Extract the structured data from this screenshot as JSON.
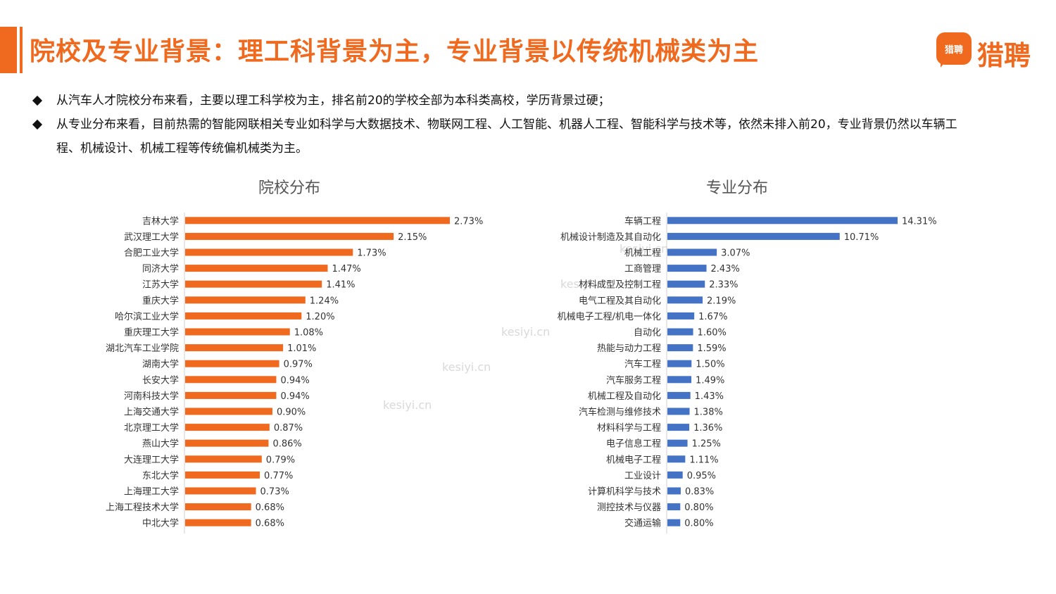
{
  "header": {
    "title": "院校及专业背景：理工科背景为主，专业背景以传统机械类为主",
    "logo_badge": "猎聘",
    "logo_text": "猎聘"
  },
  "bullets": [
    "从汽车人才院校分布来看，主要以理工科学校为主，排名前20的学校全部为本科类高校，学历背景过硬；",
    "从专业分布来看，目前热需的智能网联相关专业如科学与大数据技术、物联网工程、人工智能、机器人工程、智能科学与技术等，依然未排入前20，专业背景仍然以车辆工程、机械设计、机械工程等传统偏机械类为主。"
  ],
  "watermark": "kesiyi.cn",
  "colors": {
    "accent": "#ef6a1f",
    "blue": "#4472c4"
  },
  "chart_data": [
    {
      "type": "bar",
      "orientation": "horizontal",
      "title": "院校分布",
      "color": "#ef6a1f",
      "categories": [
        "吉林大学",
        "武汉理工大学",
        "合肥工业大学",
        "同济大学",
        "江苏大学",
        "重庆大学",
        "哈尔滨工业大学",
        "重庆理工大学",
        "湖北汽车工业学院",
        "湖南大学",
        "长安大学",
        "河南科技大学",
        "上海交通大学",
        "北京理工大学",
        "燕山大学",
        "大连理工大学",
        "东北大学",
        "上海理工大学",
        "上海工程技术大学",
        "中北大学"
      ],
      "values": [
        2.73,
        2.15,
        1.73,
        1.47,
        1.41,
        1.24,
        1.2,
        1.08,
        1.01,
        0.97,
        0.94,
        0.94,
        0.9,
        0.87,
        0.86,
        0.79,
        0.77,
        0.73,
        0.68,
        0.68
      ],
      "labels": [
        "2.73%",
        "2.15%",
        "1.73%",
        "1.47%",
        "1.41%",
        "1.24%",
        "1.20%",
        "1.08%",
        "1.01%",
        "0.97%",
        "0.94%",
        "0.94%",
        "0.90%",
        "0.87%",
        "0.86%",
        "0.79%",
        "0.77%",
        "0.73%",
        "0.68%",
        "0.68%"
      ],
      "xlim": [
        0,
        2.73
      ]
    },
    {
      "type": "bar",
      "orientation": "horizontal",
      "title": "专业分布",
      "color": "#4472c4",
      "categories": [
        "车辆工程",
        "机械设计制造及其自动化",
        "机械工程",
        "工商管理",
        "材料成型及控制工程",
        "电气工程及其自动化",
        "机械电子工程/机电一体化",
        "自动化",
        "热能与动力工程",
        "汽车工程",
        "汽车服务工程",
        "机械工程及自动化",
        "汽车检测与维修技术",
        "材料科学与工程",
        "电子信息工程",
        "机械电子工程",
        "工业设计",
        "计算机科学与技术",
        "测控技术与仪器",
        "交通运输"
      ],
      "values": [
        14.31,
        10.71,
        3.07,
        2.43,
        2.33,
        2.19,
        1.67,
        1.6,
        1.59,
        1.5,
        1.49,
        1.43,
        1.38,
        1.36,
        1.25,
        1.11,
        0.95,
        0.83,
        0.8,
        0.8
      ],
      "labels": [
        "14.31%",
        "10.71%",
        "3.07%",
        "2.43%",
        "2.33%",
        "2.19%",
        "1.67%",
        "1.60%",
        "1.59%",
        "1.50%",
        "1.49%",
        "1.43%",
        "1.38%",
        "1.36%",
        "1.25%",
        "1.11%",
        "0.95%",
        "0.83%",
        "0.80%",
        "0.80%"
      ],
      "xlim": [
        0,
        14.31
      ]
    }
  ]
}
